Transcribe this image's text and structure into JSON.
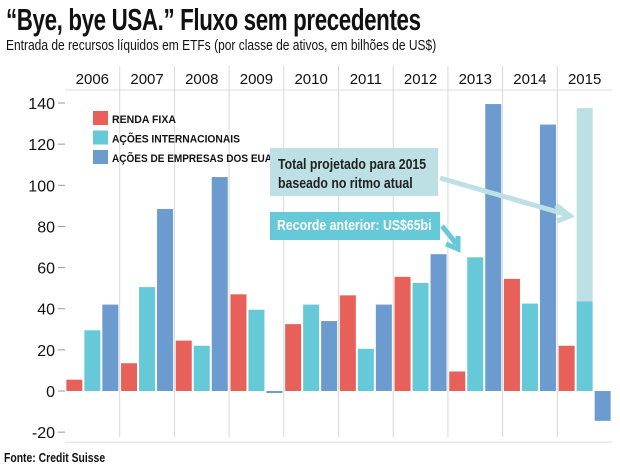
{
  "title": "“Bye, bye USA.”  Fluxo sem precedentes",
  "subtitle": "Entrada de recursos líquidos em ETFs (por classe de ativos, em bilhões de US$)",
  "source": "Fonte: Credit Suisse",
  "chart_data": {
    "type": "bar",
    "categories": [
      "2006",
      "2007",
      "2008",
      "2009",
      "2010",
      "2011",
      "2012",
      "2013",
      "2014",
      "2015"
    ],
    "ylim": [
      -20,
      140
    ],
    "yticks": [
      -20,
      0,
      20,
      40,
      60,
      80,
      100,
      120,
      140
    ],
    "ytick_labels": [
      "-20",
      "0",
      "20",
      "40",
      "60",
      "80",
      "100",
      "120",
      "140"
    ],
    "grid": "vertical lines between years",
    "legend_position": "top-left",
    "series": [
      {
        "name": "RENDA FIXA",
        "color": "#e8605a",
        "values": [
          5.5,
          13.5,
          24.5,
          47,
          32.5,
          46.5,
          55.5,
          9.5,
          54.5,
          22
        ]
      },
      {
        "name": "AÇÕES INTERNACIONAIS",
        "color": "#66c9d7",
        "values": [
          29.5,
          50.5,
          22,
          39.5,
          42,
          20.5,
          52.5,
          65,
          42.5,
          43.5
        ]
      },
      {
        "name": "AÇÕES DE EMPRESAS DOS EUA",
        "color": "#6b9bcf",
        "values": [
          42,
          88.5,
          104,
          -1,
          34,
          42,
          66.5,
          139.5,
          129.5,
          -14.5
        ]
      }
    ],
    "projection": {
      "category": "2015",
      "series": "AÇÕES INTERNACIONAIS",
      "projected_total": 137.5,
      "color": "#bde0e5"
    },
    "annotations": [
      {
        "text_line1": "Total projetado para 2015",
        "text_line2": "baseado no ritmo atual",
        "color": "#bde0e5"
      },
      {
        "text": "Recorde anterior: US$65bi",
        "color": "#66c9d7"
      }
    ]
  }
}
